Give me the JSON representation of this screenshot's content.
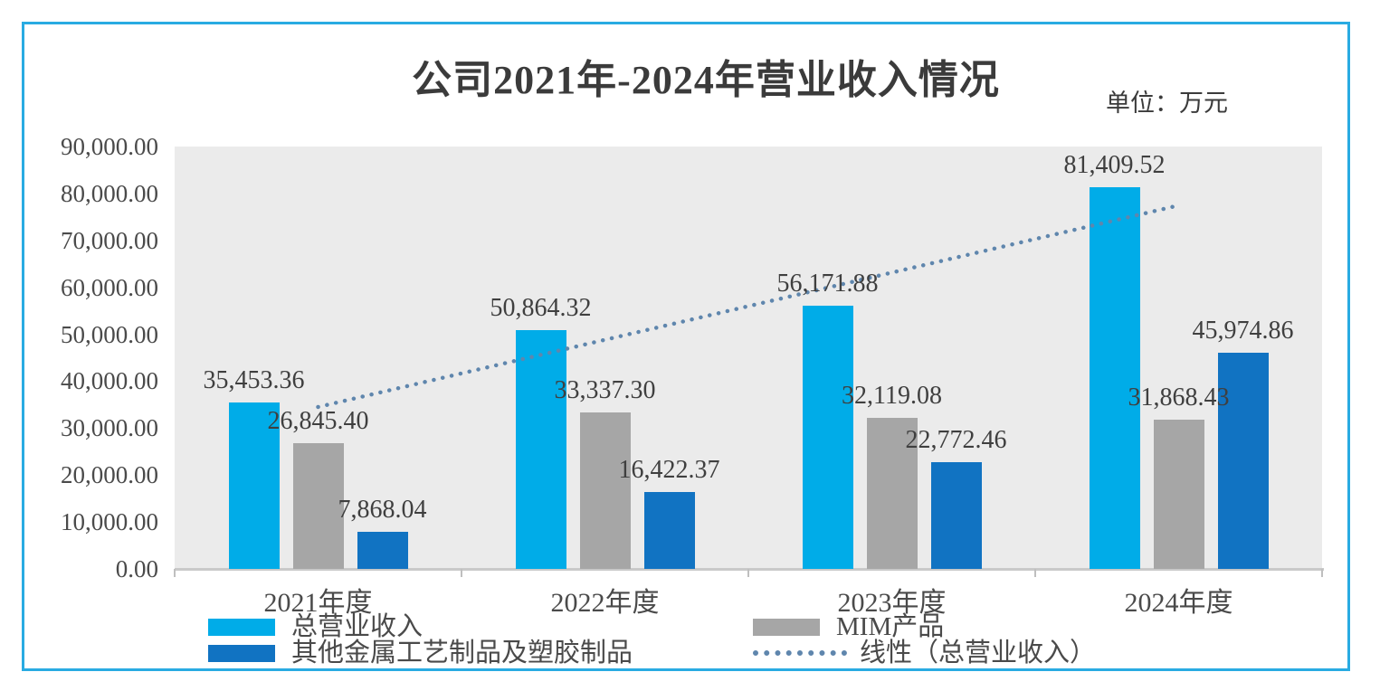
{
  "title": "公司2021年-2024年营业收入情况",
  "unit_label": "单位：万元",
  "frame_color": "#29ABE2",
  "chart_data": {
    "type": "bar",
    "categories": [
      "2021年度",
      "2022年度",
      "2023年度",
      "2024年度"
    ],
    "series": [
      {
        "name": "总营业收入",
        "color": "#00ACE8",
        "values": [
          35453.36,
          50864.32,
          56171.88,
          81409.52
        ],
        "labels": [
          "35,453.36",
          "50,864.32",
          "56,171.88",
          "81,409.52"
        ]
      },
      {
        "name": "MIM产品",
        "color": "#A6A6A6",
        "values": [
          26845.4,
          33337.3,
          32119.08,
          31868.43
        ],
        "labels": [
          "26,845.40",
          "33,337.30",
          "32,119.08",
          "31,868.43"
        ]
      },
      {
        "name": "其他金属工艺制品及塑胶制品",
        "color": "#1173C2",
        "values": [
          7868.04,
          16422.37,
          22772.46,
          45974.86
        ],
        "labels": [
          "7,868.04",
          "16,422.37",
          "22,772.46",
          "45,974.86"
        ]
      }
    ],
    "trendline": {
      "name": "线性（总营业收入）",
      "based_on": "总营业收入",
      "color": "#5F86AD",
      "style": "dotted"
    },
    "y_ticks": [
      "90,000.00",
      "80,000.00",
      "70,000.00",
      "60,000.00",
      "50,000.00",
      "40,000.00",
      "30,000.00",
      "20,000.00",
      "10,000.00",
      "0.00"
    ],
    "ylim": [
      0,
      90000
    ],
    "grid": false,
    "plot_bg": "#EBEBEB",
    "legend_position": "bottom"
  },
  "legend": {
    "columns": [
      [
        {
          "label": "总营业收入",
          "swatch": "bar",
          "color": "#00ACE8"
        },
        {
          "label": "其他金属工艺制品及塑胶制品",
          "swatch": "bar",
          "color": "#1173C2"
        }
      ],
      [
        {
          "label": "MIM产品",
          "swatch": "bar",
          "color": "#A6A6A6"
        },
        {
          "label": "线性（总营业收入）",
          "swatch": "dotted-line",
          "color": "#5F86AD"
        }
      ]
    ]
  }
}
